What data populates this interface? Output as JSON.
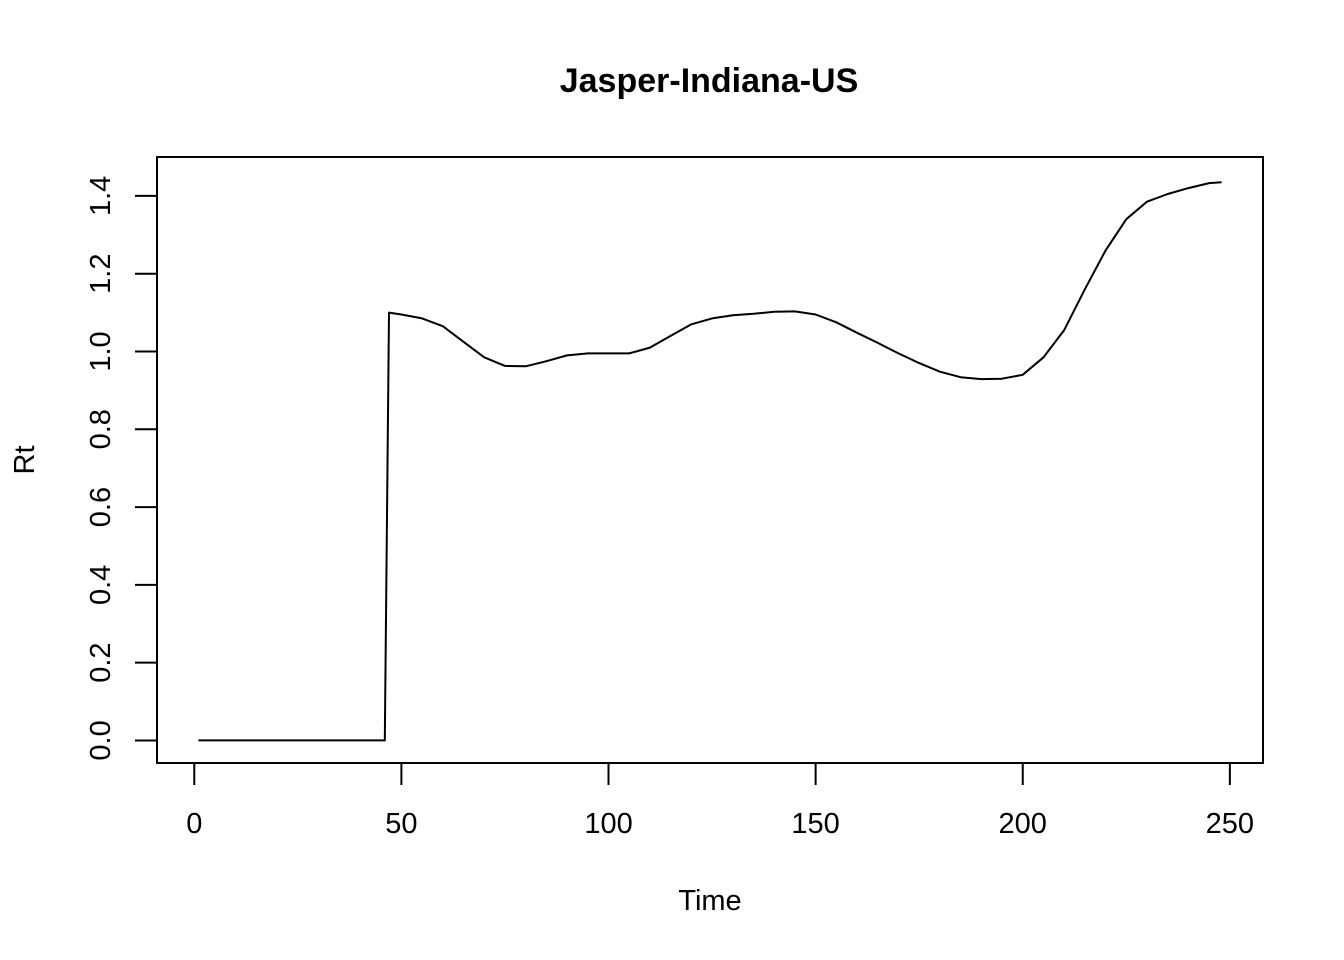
{
  "chart_data": {
    "type": "line",
    "title": "Jasper-Indiana-US",
    "xlabel": "Time",
    "ylabel": "Rt",
    "xlim": [
      -9,
      258
    ],
    "ylim": [
      -0.058,
      1.5
    ],
    "x_ticks": [
      0,
      50,
      100,
      150,
      200,
      250
    ],
    "y_ticks": [
      0.0,
      0.2,
      0.4,
      0.6,
      0.8,
      1.0,
      1.2,
      1.4
    ],
    "y_tick_labels": [
      "0.0",
      "0.2",
      "0.4",
      "0.6",
      "0.8",
      "1.0",
      "1.2",
      "1.4"
    ],
    "grid": false,
    "legend": "none",
    "line_color": "#000000",
    "series": [
      {
        "x": [
          1,
          10,
          20,
          30,
          40,
          46,
          47,
          50,
          55,
          60,
          65,
          70,
          75,
          80,
          85,
          90,
          95,
          100,
          105,
          110,
          115,
          120,
          125,
          130,
          135,
          140,
          145,
          150,
          155,
          160,
          165,
          170,
          175,
          180,
          185,
          190,
          195,
          200,
          205,
          210,
          215,
          220,
          225,
          230,
          235,
          240,
          245,
          248
        ],
        "y": [
          0.0,
          0.0,
          0.0,
          0.0,
          0.0,
          0.0,
          1.1,
          1.095,
          1.085,
          1.065,
          1.025,
          0.985,
          0.963,
          0.962,
          0.975,
          0.99,
          0.995,
          0.995,
          0.995,
          1.01,
          1.04,
          1.07,
          1.085,
          1.093,
          1.097,
          1.102,
          1.103,
          1.095,
          1.075,
          1.048,
          1.022,
          0.995,
          0.97,
          0.948,
          0.934,
          0.929,
          0.93,
          0.94,
          0.985,
          1.055,
          1.16,
          1.26,
          1.34,
          1.385,
          1.405,
          1.42,
          1.433,
          1.435
        ]
      }
    ]
  }
}
